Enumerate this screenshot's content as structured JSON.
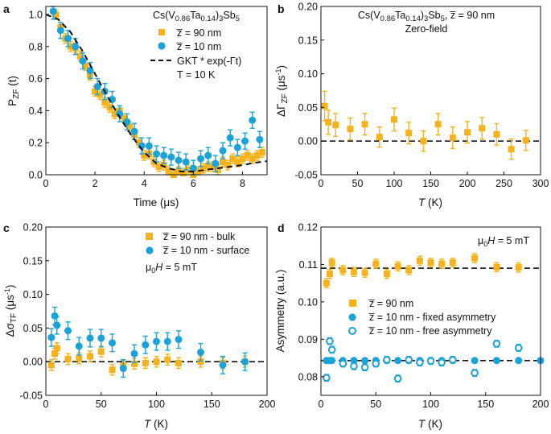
{
  "colors": {
    "orange": "#f5b21b",
    "blue": "#1aa3d9",
    "dashed": "#111111"
  },
  "chart_data": [
    {
      "type": "scatter",
      "panel_label": "a",
      "title": "Cs(V0.86Ta0.14)3Sb5",
      "xlabel": "Time (μs)",
      "ylabel": "P_ZF (t)",
      "xlim": [
        0,
        9
      ],
      "ylim": [
        0.0,
        1.05
      ],
      "xticks": [
        "0",
        "2",
        "4",
        "6",
        "8"
      ],
      "xtick_values": [
        0,
        2,
        4,
        6,
        8
      ],
      "yticks": [
        "0.0",
        "0.2",
        "0.4",
        "0.6",
        "0.8",
        "1.0"
      ],
      "ytick_values": [
        0.0,
        0.2,
        0.4,
        0.6,
        0.8,
        1.0
      ],
      "legend": [
        "z̅ = 90 nm",
        "z̅ = 10 nm",
        "GKT * exp(-Γt)",
        "T = 10 K"
      ],
      "fit_label": "GKT * exp(-Γt)",
      "temperature_label": "T = 10 K",
      "series": [
        {
          "name": "z = 90 nm",
          "color": "orange",
          "marker": "square",
          "x": [
            0.4,
            0.6,
            0.8,
            1.0,
            1.2,
            1.4,
            1.6,
            1.8,
            2.0,
            2.2,
            2.4,
            2.6,
            2.8,
            3.0,
            3.2,
            3.4,
            3.6,
            3.8,
            4.0,
            4.2,
            4.4,
            4.6,
            4.8,
            5.0,
            5.2,
            5.4,
            5.6,
            5.8,
            6.0,
            6.2,
            6.4,
            6.6,
            6.8,
            7.0,
            7.2,
            7.4,
            7.6,
            7.8,
            8.0,
            8.2,
            8.4,
            8.6,
            8.8
          ],
          "y": [
            1.0,
            0.92,
            0.85,
            0.8,
            0.79,
            0.74,
            0.68,
            0.62,
            0.52,
            0.5,
            0.45,
            0.42,
            0.38,
            0.4,
            0.35,
            0.3,
            0.25,
            0.2,
            0.12,
            0.13,
            0.08,
            0.05,
            0.06,
            0.02,
            0.0,
            0.02,
            0.01,
            0.03,
            0.0,
            0.02,
            0.04,
            0.05,
            0.05,
            0.03,
            0.08,
            0.06,
            0.1,
            0.08,
            0.1,
            0.12,
            0.1,
            0.12,
            0.14
          ],
          "err": 0.03
        },
        {
          "name": "z = 10 nm",
          "color": "blue",
          "marker": "circle",
          "x": [
            0.3,
            0.6,
            0.9,
            1.2,
            1.5,
            1.8,
            2.1,
            2.4,
            2.7,
            3.0,
            3.3,
            3.6,
            3.9,
            4.2,
            4.5,
            4.8,
            5.1,
            5.4,
            5.7,
            6.0,
            6.3,
            6.6,
            6.9,
            7.2,
            7.5,
            7.8,
            8.1,
            8.4,
            8.7
          ],
          "y": [
            1.02,
            0.9,
            0.85,
            0.8,
            0.71,
            0.65,
            0.55,
            0.52,
            0.47,
            0.38,
            0.33,
            0.27,
            0.18,
            0.18,
            0.13,
            0.12,
            0.11,
            0.09,
            0.08,
            0.04,
            0.1,
            0.12,
            0.07,
            0.15,
            0.23,
            0.17,
            0.21,
            0.34,
            0.22
          ],
          "err": 0.05
        },
        {
          "name": "GKT * exp(-Γt)",
          "color": "dashed",
          "style": "dashed-fit",
          "x": [
            0,
            0.5,
            1.0,
            1.5,
            2.0,
            2.5,
            3.0,
            3.5,
            4.0,
            4.5,
            5.0,
            5.5,
            6.0,
            6.5,
            7.0,
            7.5,
            8.0,
            8.5,
            9.0
          ],
          "y": [
            1.0,
            0.97,
            0.89,
            0.77,
            0.63,
            0.49,
            0.36,
            0.24,
            0.14,
            0.07,
            0.04,
            0.02,
            0.02,
            0.03,
            0.04,
            0.05,
            0.06,
            0.075,
            0.085
          ]
        }
      ]
    },
    {
      "type": "scatter",
      "panel_label": "b",
      "title": "Cs(V0.86Ta0.14)3Sb5, z̅ = 90 nm",
      "subtitle": "Zero-field",
      "xlabel": "T (K)",
      "ylabel": "ΔΓ_ZF (μs⁻¹)",
      "xlim": [
        0,
        300
      ],
      "ylim": [
        -0.05,
        0.2
      ],
      "xticks": [
        "0",
        "50",
        "100",
        "150",
        "200",
        "250",
        "300"
      ],
      "xtick_values": [
        0,
        50,
        100,
        150,
        200,
        250,
        300
      ],
      "yticks": [
        "-0.05",
        "0.00",
        "0.05",
        "0.10",
        "0.15",
        "0.20"
      ],
      "ytick_values": [
        -0.05,
        0.0,
        0.05,
        0.1,
        0.15,
        0.2
      ],
      "reference_line": 0.0,
      "series": [
        {
          "name": "z = 90 nm",
          "color": "orange",
          "marker": "square",
          "x": [
            5,
            10,
            20,
            40,
            60,
            80,
            100,
            120,
            140,
            160,
            180,
            200,
            220,
            240,
            260,
            280
          ],
          "y": [
            0.052,
            0.028,
            0.024,
            0.018,
            0.025,
            0.006,
            0.032,
            0.012,
            0.0,
            0.025,
            0.005,
            0.013,
            0.019,
            0.01,
            -0.012,
            0.001
          ],
          "err": [
            0.022,
            0.018,
            0.017,
            0.016,
            0.016,
            0.015,
            0.017,
            0.016,
            0.015,
            0.016,
            0.016,
            0.016,
            0.016,
            0.016,
            0.015,
            0.015
          ]
        }
      ]
    },
    {
      "type": "scatter",
      "panel_label": "c",
      "xlabel": "T (K)",
      "ylabel": "Δσ_TF (μs⁻¹)",
      "xlim": [
        0,
        200
      ],
      "ylim": [
        -0.05,
        0.2
      ],
      "xticks": [
        "0",
        "50",
        "100",
        "150",
        "200"
      ],
      "xtick_values": [
        0,
        50,
        100,
        150,
        200
      ],
      "yticks": [
        "-0.05",
        "0.00",
        "0.05",
        "0.10",
        "0.15",
        "0.20"
      ],
      "ytick_values": [
        -0.05,
        0.0,
        0.05,
        0.1,
        0.15,
        0.2
      ],
      "legend": [
        "z̅ = 90 nm - bulk",
        "z̅ = 10 nm - surface"
      ],
      "field_label": "μ0H = 5 mT",
      "reference_line": 0.0,
      "series": [
        {
          "name": "z = 90 nm - bulk",
          "color": "orange",
          "marker": "square",
          "x": [
            5,
            8,
            10,
            20,
            30,
            40,
            50,
            60,
            70,
            80,
            90,
            100,
            110,
            120,
            140,
            160,
            180
          ],
          "y": [
            -0.005,
            0.012,
            0.02,
            0.004,
            0.005,
            0.008,
            0.015,
            -0.012,
            -0.006,
            -0.003,
            -0.002,
            0.0,
            0.003,
            -0.002,
            0.0,
            -0.002,
            0.0
          ],
          "err": 0.008
        },
        {
          "name": "z = 10 nm - surface",
          "color": "blue",
          "marker": "circle",
          "x": [
            5,
            8,
            10,
            20,
            30,
            40,
            50,
            60,
            70,
            80,
            90,
            100,
            110,
            120,
            140,
            160,
            180
          ],
          "y": [
            0.036,
            0.068,
            0.054,
            0.046,
            0.023,
            0.035,
            0.035,
            0.028,
            -0.01,
            0.012,
            0.025,
            0.03,
            0.03,
            0.033,
            0.014,
            -0.005,
            0.0
          ],
          "err": 0.013
        }
      ]
    },
    {
      "type": "scatter",
      "panel_label": "d",
      "xlabel": "T (K)",
      "ylabel": "Asymmetry (a.u.)",
      "xlim": [
        0,
        200
      ],
      "ylim": [
        0.075,
        0.12
      ],
      "xticks": [
        "0",
        "50",
        "100",
        "150",
        "200"
      ],
      "xtick_values": [
        0,
        50,
        100,
        150,
        200
      ],
      "yticks": [
        "0.08",
        "0.09",
        "0.10",
        "0.11",
        "0.12"
      ],
      "ytick_values": [
        0.08,
        0.09,
        0.1,
        0.11,
        0.12
      ],
      "legend": [
        "z̅ = 90 nm",
        "z̅ = 10 nm - fixed asymmetry",
        "z̅ = 10 nm - free asymmetry"
      ],
      "field_label": "μ0H = 5 mT",
      "reference_lines": [
        0.109,
        0.0843
      ],
      "series": [
        {
          "name": "z = 90 nm",
          "color": "orange",
          "marker": "square",
          "x": [
            5,
            8,
            10,
            20,
            30,
            40,
            50,
            60,
            70,
            80,
            90,
            100,
            110,
            120,
            140,
            160,
            180
          ],
          "y": [
            0.105,
            0.1075,
            0.1105,
            0.1085,
            0.108,
            0.1078,
            0.1102,
            0.1075,
            0.1095,
            0.1085,
            0.111,
            0.1105,
            0.1102,
            0.1105,
            0.1117,
            0.1093,
            0.1092
          ],
          "err": 0.0012
        },
        {
          "name": "z = 10 nm - fixed asymmetry",
          "color": "blue",
          "marker": "circle",
          "x": [
            5,
            8,
            10,
            20,
            30,
            40,
            50,
            60,
            70,
            80,
            90,
            100,
            110,
            120,
            140,
            160,
            180,
            200
          ],
          "y": [
            0.0843,
            0.0843,
            0.0843,
            0.0843,
            0.0843,
            0.0843,
            0.0843,
            0.0843,
            0.0843,
            0.0843,
            0.0843,
            0.0843,
            0.0843,
            0.0843,
            0.0843,
            0.0843,
            0.0843,
            0.0843
          ],
          "err": 0.0004
        },
        {
          "name": "z = 10 nm - free asymmetry",
          "color": "blue",
          "marker": "open-circle",
          "x": [
            5,
            8,
            10,
            20,
            30,
            40,
            50,
            60,
            70,
            80,
            90,
            100,
            110,
            120,
            140,
            160,
            180
          ],
          "y": [
            0.0797,
            0.0895,
            0.0872,
            0.0835,
            0.0828,
            0.0825,
            0.0835,
            0.0845,
            0.0795,
            0.0845,
            0.0838,
            0.0842,
            0.0838,
            0.0845,
            0.081,
            0.0888,
            0.0877
          ],
          "err": 0.0009
        }
      ]
    }
  ]
}
